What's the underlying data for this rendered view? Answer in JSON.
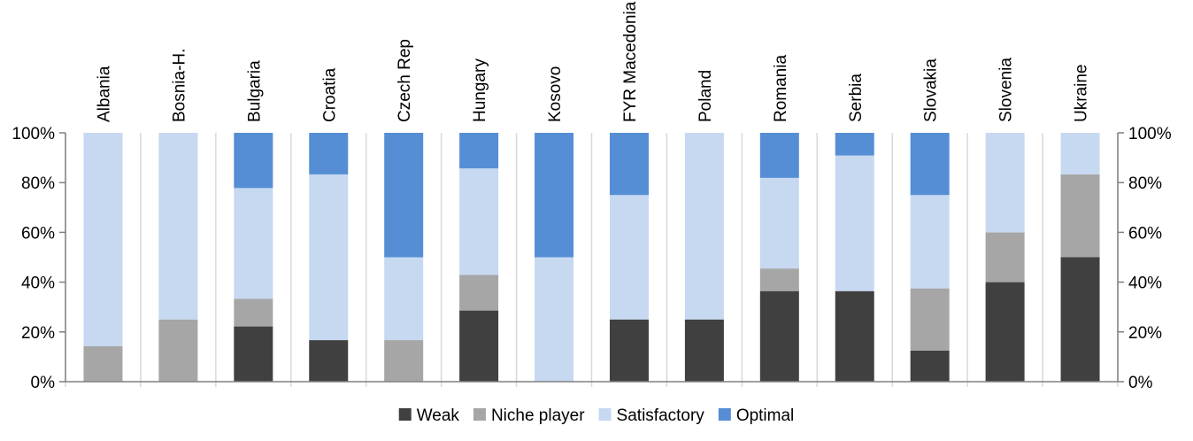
{
  "chart_data": {
    "type": "bar",
    "stacked": true,
    "percent": true,
    "categories": [
      "Albania",
      "Bosnia-H.",
      "Bulgaria",
      "Croatia",
      "Czech Rep",
      "Hungary",
      "Kosovo",
      "FYR Macedonia",
      "Poland",
      "Romania",
      "Serbia",
      "Slovakia",
      "Slovenia",
      "Ukraine"
    ],
    "series": [
      {
        "name": "Weak",
        "color": "#404040",
        "values": [
          0,
          0,
          22.2,
          16.7,
          0,
          28.6,
          0,
          25,
          25,
          36.4,
          36.4,
          12.5,
          40,
          50
        ]
      },
      {
        "name": "Niche player",
        "color": "#a6a6a6",
        "values": [
          14.3,
          25,
          11.1,
          0,
          16.7,
          14.3,
          0,
          0,
          0,
          9.1,
          0,
          25,
          20,
          33.3
        ]
      },
      {
        "name": "Satisfactory",
        "color": "#c6d9f1",
        "values": [
          85.7,
          75,
          44.5,
          66.6,
          33.3,
          42.8,
          50,
          50,
          75,
          36.4,
          54.5,
          37.5,
          40,
          16.7
        ]
      },
      {
        "name": "Optimal",
        "color": "#558ed5",
        "values": [
          0,
          0,
          22.2,
          16.7,
          50,
          14.3,
          50,
          25,
          0,
          18.1,
          9.1,
          25,
          0,
          0
        ]
      }
    ],
    "ylim": [
      0,
      100
    ],
    "yticks": [
      "0%",
      "20%",
      "40%",
      "60%",
      "80%",
      "100%"
    ],
    "secondary_axis": true,
    "legend_position": "bottom",
    "grid": false
  }
}
